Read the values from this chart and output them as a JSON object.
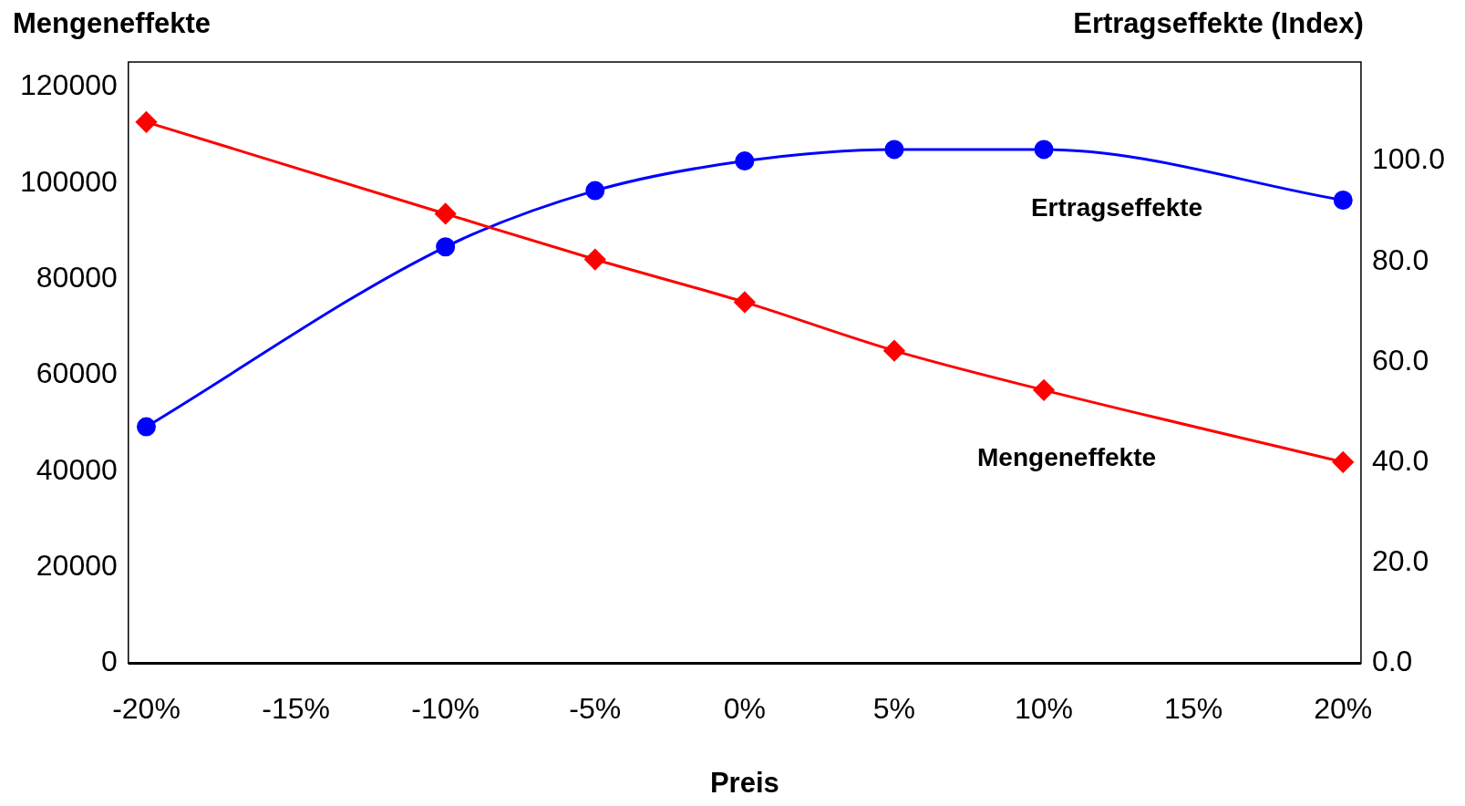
{
  "chart_data": {
    "type": "line",
    "xlabel": "Preis",
    "ylabel": "Mengeneffekte",
    "y2label": "Ertragseffekte (Index)",
    "x": [
      -20,
      -10,
      -5,
      0,
      5,
      10,
      20
    ],
    "xlim": [
      -20.6,
      20.6
    ],
    "xticks": [
      {
        "value": -20,
        "label": "-20%"
      },
      {
        "value": -15,
        "label": "-15%"
      },
      {
        "value": -10,
        "label": "-10%"
      },
      {
        "value": -5,
        "label": "-5%"
      },
      {
        "value": 0,
        "label": "0%"
      },
      {
        "value": 5,
        "label": "5%"
      },
      {
        "value": 10,
        "label": "10%"
      },
      {
        "value": 15,
        "label": "15%"
      },
      {
        "value": 20,
        "label": "20%"
      }
    ],
    "ylim": [
      0,
      125200
    ],
    "yticks": [
      0,
      20000,
      40000,
      60000,
      80000,
      100000,
      120000
    ],
    "y2lim": [
      0,
      119.7
    ],
    "y2ticks": [
      {
        "value": 0,
        "label": "0.0"
      },
      {
        "value": 20,
        "label": "20.0"
      },
      {
        "value": 40,
        "label": "40.0"
      },
      {
        "value": 60,
        "label": "60.0"
      },
      {
        "value": 80,
        "label": "80.0"
      },
      {
        "value": 100,
        "label": "100.0"
      }
    ],
    "series": [
      {
        "name": "Mengeneffekte",
        "color": "#ff0000",
        "marker": "diamond",
        "values": [
          112700,
          93600,
          84100,
          75200,
          65100,
          56900,
          41900
        ]
      },
      {
        "name": "Ertragseffekte",
        "color": "#0000ff",
        "marker": "circle",
        "axis": "y2",
        "values": [
          47.1,
          82.9,
          94.1,
          100.0,
          102.3,
          102.3,
          92.2
        ]
      }
    ],
    "grid": false,
    "legend": false,
    "line_style": "solid"
  }
}
